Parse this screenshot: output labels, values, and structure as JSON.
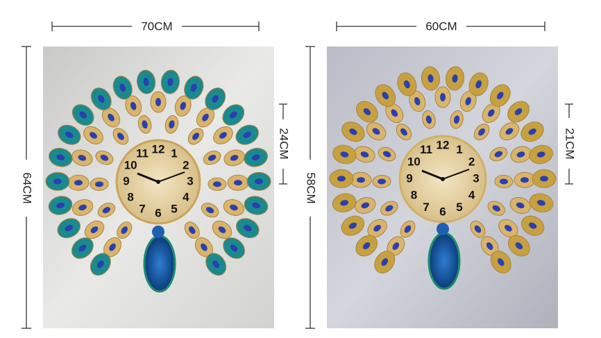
{
  "dial": [
    "12",
    "1",
    "2",
    "3",
    "4",
    "5",
    "6",
    "7",
    "8",
    "9",
    "10",
    "11"
  ],
  "panels": [
    {
      "width_label": "70CM",
      "height_label": "64CM",
      "clock_label": "24CM"
    },
    {
      "width_label": "60CM",
      "height_label": "58CM",
      "clock_label": "21CM"
    }
  ]
}
